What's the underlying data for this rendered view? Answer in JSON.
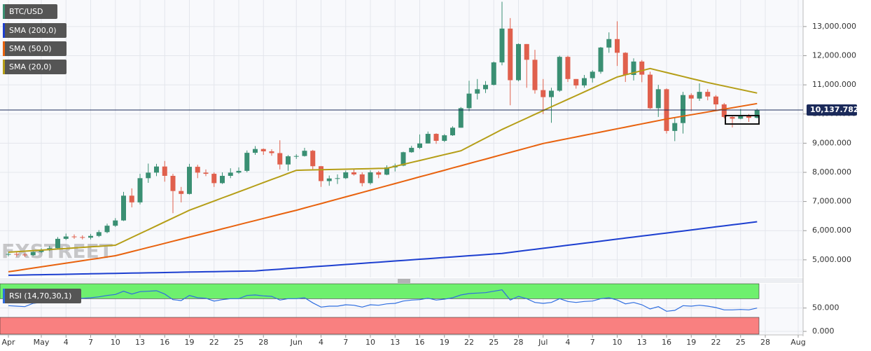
{
  "chart_data": [
    {
      "type": "candlestick",
      "name": "BTC/USD",
      "watermark": "FXSTREET",
      "up_color": "#3a8f73",
      "down_color": "#e0604d",
      "grid": true,
      "categories": [
        "Apr",
        null,
        null,
        null,
        "May",
        null,
        null,
        "4",
        null,
        null,
        "7",
        null,
        null,
        "10",
        null,
        null,
        "13",
        null,
        null,
        "16",
        null,
        null,
        "19",
        null,
        null,
        "22",
        null,
        null,
        "25",
        null,
        null,
        "28",
        null,
        null,
        null,
        "Jun",
        null,
        null,
        "4",
        null,
        null,
        "7",
        null,
        null,
        "10",
        null,
        null,
        "13",
        null,
        null,
        "16",
        null,
        null,
        "19",
        null,
        null,
        "22",
        null,
        null,
        "25",
        null,
        null,
        "28",
        null,
        null,
        "Jul",
        null,
        null,
        "4",
        null,
        null,
        "7",
        null,
        null,
        "10",
        null,
        null,
        "13",
        null,
        null,
        "16",
        null,
        null,
        "19",
        null,
        null,
        "22",
        null,
        null,
        "25",
        null,
        null,
        "28",
        null,
        null,
        null,
        "Aug"
      ],
      "open": [
        5180,
        5200,
        5180,
        5160,
        5270,
        5330,
        5400,
        5720,
        5800,
        5780,
        5760,
        5820,
        5950,
        6170,
        6350,
        7200,
        6970,
        7800,
        7990,
        8200,
        7880,
        7360,
        7260,
        8190,
        7990,
        7950,
        7630,
        7880,
        7990,
        8050,
        8670,
        8800,
        8720,
        8660,
        8270,
        8550,
        8560,
        8740,
        8210,
        7700,
        7790,
        7800,
        8000,
        7930,
        7630,
        8000,
        7920,
        8170,
        8230,
        8690,
        8840,
        8990,
        9320,
        9080,
        9270,
        9530,
        10200,
        10700,
        10850,
        11000,
        11770,
        12930,
        11160,
        12400,
        11860,
        10820,
        10580,
        10800,
        11960,
        11200,
        10980,
        11230,
        11450,
        12280,
        12570,
        12100,
        11340,
        11800,
        11350,
        10200,
        10850,
        9420,
        9690,
        10650,
        10530,
        10760,
        10600,
        10330,
        9900,
        9840,
        9950,
        9870,
        null,
        null,
        null,
        null,
        null
      ],
      "high": [
        5280,
        5260,
        5230,
        5340,
        5400,
        5480,
        5780,
        5900,
        5870,
        5840,
        5890,
        6020,
        6240,
        6430,
        7330,
        7450,
        7950,
        8300,
        8290,
        8390,
        7950,
        7500,
        8290,
        8260,
        8100,
        8000,
        8000,
        8140,
        8170,
        8750,
        8900,
        8820,
        8790,
        9100,
        8590,
        8620,
        8840,
        8770,
        8220,
        7890,
        7930,
        8060,
        8100,
        8000,
        8070,
        8050,
        8240,
        8300,
        8710,
        8910,
        9300,
        9400,
        9340,
        9310,
        9580,
        10240,
        11140,
        11200,
        11130,
        11800,
        13850,
        13290,
        12420,
        12400,
        12200,
        11200,
        10900,
        12000,
        12000,
        11200,
        11340,
        11500,
        12300,
        12800,
        13180,
        12120,
        11910,
        11850,
        11450,
        11000,
        10880,
        9860,
        10760,
        10710,
        11050,
        10850,
        10650,
        10380,
        9920,
        10170,
        10000,
        10180,
        null,
        null,
        null,
        null,
        null
      ],
      "low": [
        5120,
        5110,
        5100,
        5130,
        5230,
        5300,
        5380,
        5680,
        5720,
        5700,
        5700,
        5780,
        5910,
        6130,
        6330,
        6800,
        6900,
        7640,
        7870,
        7680,
        6600,
        6970,
        7240,
        7800,
        7870,
        7500,
        7600,
        7800,
        7950,
        8000,
        8600,
        8600,
        8570,
        8100,
        8050,
        8460,
        8540,
        8110,
        7500,
        7540,
        7600,
        7770,
        7890,
        7520,
        7580,
        7800,
        7900,
        8030,
        8210,
        8670,
        8800,
        8990,
        8980,
        9040,
        9250,
        9530,
        10100,
        10500,
        10720,
        10980,
        11670,
        10300,
        11120,
        10900,
        10700,
        10000,
        9700,
        10760,
        11100,
        10870,
        10900,
        11080,
        11380,
        12100,
        11650,
        11100,
        11150,
        11090,
        10170,
        9900,
        9330,
        9070,
        9330,
        10100,
        10450,
        10470,
        10100,
        9850,
        9540,
        9820,
        9730,
        9850,
        null,
        null,
        null,
        null,
        null
      ],
      "close": [
        5200,
        5180,
        5160,
        5270,
        5330,
        5400,
        5720,
        5800,
        5780,
        5760,
        5820,
        5950,
        6170,
        6350,
        7200,
        6970,
        7800,
        7990,
        8200,
        7880,
        7360,
        7260,
        8190,
        7990,
        7950,
        7630,
        7880,
        7990,
        8050,
        8670,
        8800,
        8720,
        8660,
        8270,
        8550,
        8560,
        8740,
        8210,
        7700,
        7790,
        7800,
        8000,
        7930,
        7630,
        8000,
        7920,
        8170,
        8230,
        8690,
        8840,
        8990,
        9320,
        9080,
        9270,
        9530,
        10200,
        10700,
        10850,
        11000,
        11770,
        12930,
        11160,
        12400,
        11860,
        10820,
        10580,
        10800,
        11960,
        11200,
        10980,
        11230,
        11450,
        12280,
        12570,
        12100,
        11340,
        11800,
        11350,
        10200,
        10850,
        9420,
        9690,
        10650,
        10530,
        10760,
        10600,
        10330,
        9900,
        9840,
        9950,
        9870,
        10137.782,
        null,
        null,
        null,
        null,
        null
      ],
      "series": [
        {
          "name": "SMA (200,0)",
          "color": "#1d3fd0",
          "values": [
            4470,
            4475,
            4480,
            4485,
            4490,
            4495,
            4500,
            4505,
            4510,
            4515,
            4520,
            4525,
            4530,
            4535,
            4540,
            4545,
            4550,
            4555,
            4560,
            4565,
            4570,
            4575,
            4580,
            4585,
            4590,
            4595,
            4600,
            4605,
            4610,
            4615,
            4620,
            4640,
            4660,
            4680,
            4700,
            4720,
            4740,
            4760,
            4780,
            4800,
            4820,
            4840,
            4860,
            4880,
            4900,
            4920,
            4940,
            4960,
            4980,
            5000,
            5020,
            5040,
            5060,
            5080,
            5100,
            5120,
            5140,
            5160,
            5180,
            5200,
            5220,
            5255,
            5290,
            5325,
            5360,
            5395,
            5430,
            5465,
            5500,
            5535,
            5570,
            5605,
            5640,
            5675,
            5710,
            5745,
            5780,
            5815,
            5850,
            5885,
            5920,
            5955,
            5990,
            6025,
            6060,
            6095,
            6130,
            6165,
            6200,
            6235,
            6270,
            6305,
            null,
            null,
            null,
            null,
            null
          ]
        },
        {
          "name": "SMA (50,0)",
          "color": "#e8620e",
          "values": [
            4590,
            4632,
            4675,
            4717,
            4759,
            4802,
            4844,
            4886,
            4928,
            4971,
            5013,
            5055,
            5098,
            5140,
            5211,
            5282,
            5353,
            5424,
            5495,
            5566,
            5637,
            5708,
            5779,
            5850,
            5921,
            5992,
            6063,
            6134,
            6205,
            6276,
            6347,
            6418,
            6489,
            6560,
            6631,
            6700,
            6776,
            6853,
            6929,
            7005,
            7082,
            7158,
            7234,
            7310,
            7387,
            7463,
            7539,
            7616,
            7692,
            7768,
            7845,
            7921,
            7997,
            8073,
            8150,
            8226,
            8302,
            8379,
            8455,
            8531,
            8608,
            8684,
            8760,
            8836,
            8913,
            8990,
            9046,
            9102,
            9158,
            9214,
            9270,
            9326,
            9382,
            9438,
            9494,
            9550,
            9606,
            9662,
            9718,
            9774,
            9830,
            9878,
            9926,
            9974,
            10023,
            10071,
            10119,
            10167,
            10215,
            10264,
            10312,
            10360,
            null,
            null,
            null,
            null,
            null
          ]
        },
        {
          "name": "SMA (20,0)",
          "color": "#b59e17",
          "values": [
            5260,
            5278,
            5297,
            5315,
            5334,
            5352,
            5371,
            5389,
            5408,
            5426,
            5445,
            5463,
            5482,
            5500,
            5633,
            5767,
            5900,
            6033,
            6167,
            6300,
            6433,
            6567,
            6700,
            6805,
            6911,
            7016,
            7122,
            7227,
            7332,
            7438,
            7543,
            7648,
            7754,
            7859,
            7965,
            8070,
            8076,
            8083,
            8089,
            8095,
            8102,
            8108,
            8115,
            8121,
            8127,
            8134,
            8140,
            8207,
            8273,
            8340,
            8407,
            8473,
            8540,
            8607,
            8673,
            8740,
            8886,
            9032,
            9178,
            9324,
            9470,
            9600,
            9730,
            9860,
            9990,
            10120,
            10248,
            10376,
            10503,
            10631,
            10759,
            10887,
            11014,
            11142,
            11270,
            11343,
            11415,
            11488,
            11560,
            11491,
            11423,
            11354,
            11286,
            11217,
            11149,
            11080,
            11020,
            10960,
            10900,
            10840,
            10780,
            10720,
            null,
            null,
            null,
            null,
            null
          ]
        }
      ],
      "ylim": [
        4420,
        13910
      ],
      "yticks": [
        {
          "value": 5000,
          "label": "5,000.000"
        },
        {
          "value": 6000,
          "label": "6,000.000"
        },
        {
          "value": 7000,
          "label": "7,000.000"
        },
        {
          "value": 8000,
          "label": "8,000.000"
        },
        {
          "value": 9000,
          "label": "9,000.000"
        },
        {
          "value": 10000,
          "label": "10,000.000"
        },
        {
          "value": 11000,
          "label": "11,000.000"
        },
        {
          "value": 12000,
          "label": "12,000.000"
        },
        {
          "value": 13000,
          "label": "13,000.000"
        }
      ],
      "last_price": {
        "value": 10137.782,
        "label": "10,137.782"
      }
    },
    {
      "type": "line",
      "series": [
        {
          "name": "RSI (14,70,30,1)",
          "color": "#2f6ee0",
          "values": [
            55,
            54,
            53,
            60,
            62,
            64,
            72,
            73,
            72,
            71,
            72,
            74,
            77,
            79,
            86,
            80,
            85,
            86,
            87,
            80,
            68,
            66,
            77,
            72,
            71,
            65,
            68,
            70,
            70,
            77,
            78,
            76,
            75,
            67,
            70,
            70,
            72,
            61,
            52,
            54,
            54,
            57,
            56,
            52,
            57,
            56,
            59,
            60,
            65,
            67,
            68,
            71,
            67,
            69,
            72,
            78,
            81,
            82,
            83,
            86,
            89,
            67,
            75,
            70,
            62,
            60,
            62,
            70,
            64,
            62,
            64,
            65,
            70,
            72,
            67,
            59,
            62,
            57,
            48,
            53,
            43,
            45,
            55,
            54,
            56,
            54,
            51,
            46,
            46,
            47,
            46,
            50,
            null,
            null,
            null,
            null,
            null
          ]
        }
      ],
      "upper_band": 70,
      "lower_band": 30,
      "upper_color": "#6ef06e",
      "lower_color": "#f98080",
      "ylim": [
        -6,
        102
      ],
      "yticks": [
        {
          "value": 0,
          "label": "0.000"
        },
        {
          "value": 50,
          "label": "50.000"
        }
      ]
    }
  ]
}
